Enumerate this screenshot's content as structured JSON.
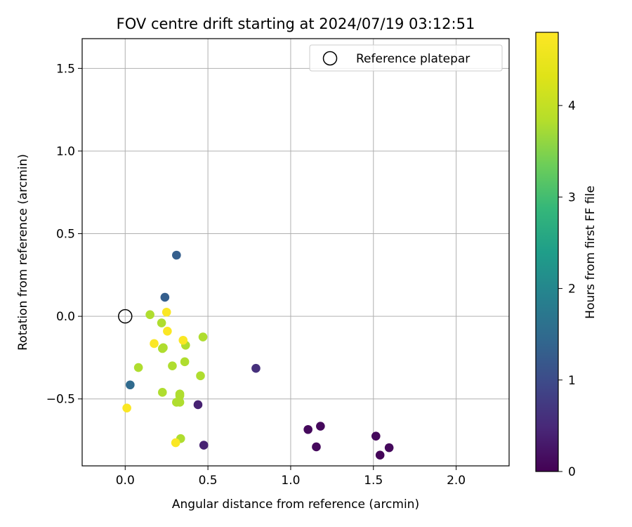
{
  "chart_data": {
    "type": "scatter",
    "title": "FOV centre drift starting at 2024/07/19 03:12:51",
    "xlabel": "Angular distance from reference (arcmin)",
    "ylabel": "Rotation from reference (arcmin)",
    "xlim": [
      -0.26,
      2.32
    ],
    "ylim": [
      -0.905,
      1.68
    ],
    "xticks": [
      0.0,
      0.5,
      1.0,
      1.5,
      2.0
    ],
    "xtick_labels": [
      "0.0",
      "0.5",
      "1.0",
      "1.5",
      "2.0"
    ],
    "yticks": [
      -0.5,
      0.0,
      0.5,
      1.0,
      1.5
    ],
    "ytick_labels": [
      "−0.5",
      "0.0",
      "0.5",
      "1.0",
      "1.5"
    ],
    "grid": true,
    "legend_position": "upper-right",
    "legend": [
      {
        "label": "Reference platepar",
        "marker": "open-circle"
      }
    ],
    "reference_point": {
      "x": 0.0,
      "y": 0.0
    },
    "colormap": "viridis",
    "colorbar": {
      "label": "Hours from first FF file",
      "range": [
        0,
        4.8
      ],
      "ticks": [
        0,
        1,
        2,
        3,
        4
      ],
      "tick_labels": [
        "0",
        "1",
        "2",
        "3",
        "4"
      ]
    },
    "points": [
      {
        "x": 0.31,
        "y": 0.37,
        "c": 1.3
      },
      {
        "x": 0.24,
        "y": 0.115,
        "c": 1.3
      },
      {
        "x": 0.03,
        "y": -0.415,
        "c": 1.5
      },
      {
        "x": 0.79,
        "y": -0.315,
        "c": 0.6
      },
      {
        "x": 0.44,
        "y": -0.535,
        "c": 0.4
      },
      {
        "x": 0.475,
        "y": -0.78,
        "c": 0.4
      },
      {
        "x": 1.105,
        "y": -0.685,
        "c": 0.1
      },
      {
        "x": 1.18,
        "y": -0.665,
        "c": 0.1
      },
      {
        "x": 1.155,
        "y": -0.79,
        "c": 0.1
      },
      {
        "x": 1.515,
        "y": -0.725,
        "c": 0.1
      },
      {
        "x": 1.54,
        "y": -0.84,
        "c": 0.05
      },
      {
        "x": 1.595,
        "y": -0.795,
        "c": 0.1
      },
      {
        "x": 0.15,
        "y": 0.01,
        "c": 3.8
      },
      {
        "x": 0.22,
        "y": -0.04,
        "c": 3.8
      },
      {
        "x": 0.225,
        "y": -0.195,
        "c": 3.8
      },
      {
        "x": 0.23,
        "y": -0.19,
        "c": 3.8
      },
      {
        "x": 0.365,
        "y": -0.175,
        "c": 3.8
      },
      {
        "x": 0.47,
        "y": -0.125,
        "c": 3.8
      },
      {
        "x": 0.08,
        "y": -0.31,
        "c": 3.8
      },
      {
        "x": 0.285,
        "y": -0.3,
        "c": 3.8
      },
      {
        "x": 0.36,
        "y": -0.275,
        "c": 3.8
      },
      {
        "x": 0.455,
        "y": -0.36,
        "c": 3.8
      },
      {
        "x": 0.225,
        "y": -0.46,
        "c": 3.8
      },
      {
        "x": 0.33,
        "y": -0.47,
        "c": 3.8
      },
      {
        "x": 0.33,
        "y": -0.48,
        "c": 3.8
      },
      {
        "x": 0.31,
        "y": -0.52,
        "c": 3.8
      },
      {
        "x": 0.33,
        "y": -0.52,
        "c": 3.8
      },
      {
        "x": 0.335,
        "y": -0.74,
        "c": 3.8
      },
      {
        "x": 0.25,
        "y": 0.025,
        "c": 4.75
      },
      {
        "x": 0.255,
        "y": -0.09,
        "c": 4.75
      },
      {
        "x": 0.175,
        "y": -0.165,
        "c": 4.75
      },
      {
        "x": 0.35,
        "y": -0.145,
        "c": 4.75
      },
      {
        "x": 0.01,
        "y": -0.555,
        "c": 4.75
      },
      {
        "x": 0.305,
        "y": -0.765,
        "c": 4.75
      }
    ]
  }
}
